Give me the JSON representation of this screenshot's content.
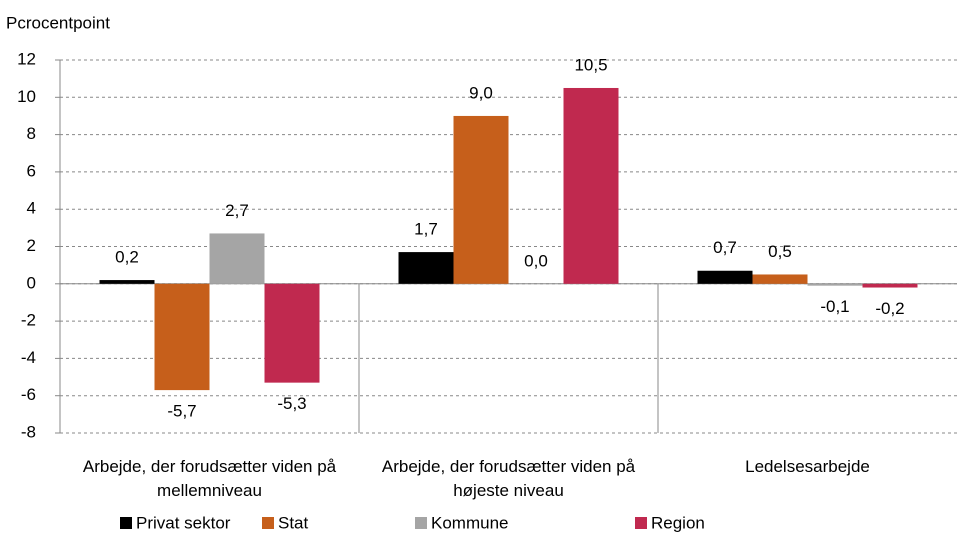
{
  "chart_data": {
    "type": "bar",
    "y_axis_label": "Pcrocentpoint",
    "categories": [
      "Arbejde, der forudsætter viden på mellemniveau",
      "Arbejde, der forudsætter viden på højeste niveau",
      "Ledelsesarbejde"
    ],
    "series": [
      {
        "name": "Privat sektor",
        "color": "#000000",
        "values": [
          0.2,
          1.7,
          0.7
        ],
        "value_labels": [
          "0,2",
          "1,7",
          "0,7"
        ]
      },
      {
        "name": "Stat",
        "color": "#c65f1b",
        "values": [
          -5.7,
          9.0,
          0.5
        ],
        "value_labels": [
          "-5,7",
          "9,0",
          "0,5"
        ]
      },
      {
        "name": "Kommune",
        "color": "#a5a5a5",
        "values": [
          2.7,
          0.0,
          -0.1
        ],
        "value_labels": [
          "2,7",
          "0,0",
          "-0,1"
        ]
      },
      {
        "name": "Region",
        "color": "#c0294f",
        "values": [
          -5.3,
          10.5,
          -0.2
        ],
        "value_labels": [
          "-5,3",
          "10,5",
          "-0,2"
        ]
      }
    ],
    "ylim": [
      -8,
      12
    ],
    "yticks": [
      -8,
      -6,
      -4,
      -2,
      0,
      2,
      4,
      6,
      8,
      10,
      12
    ],
    "grid": true
  }
}
